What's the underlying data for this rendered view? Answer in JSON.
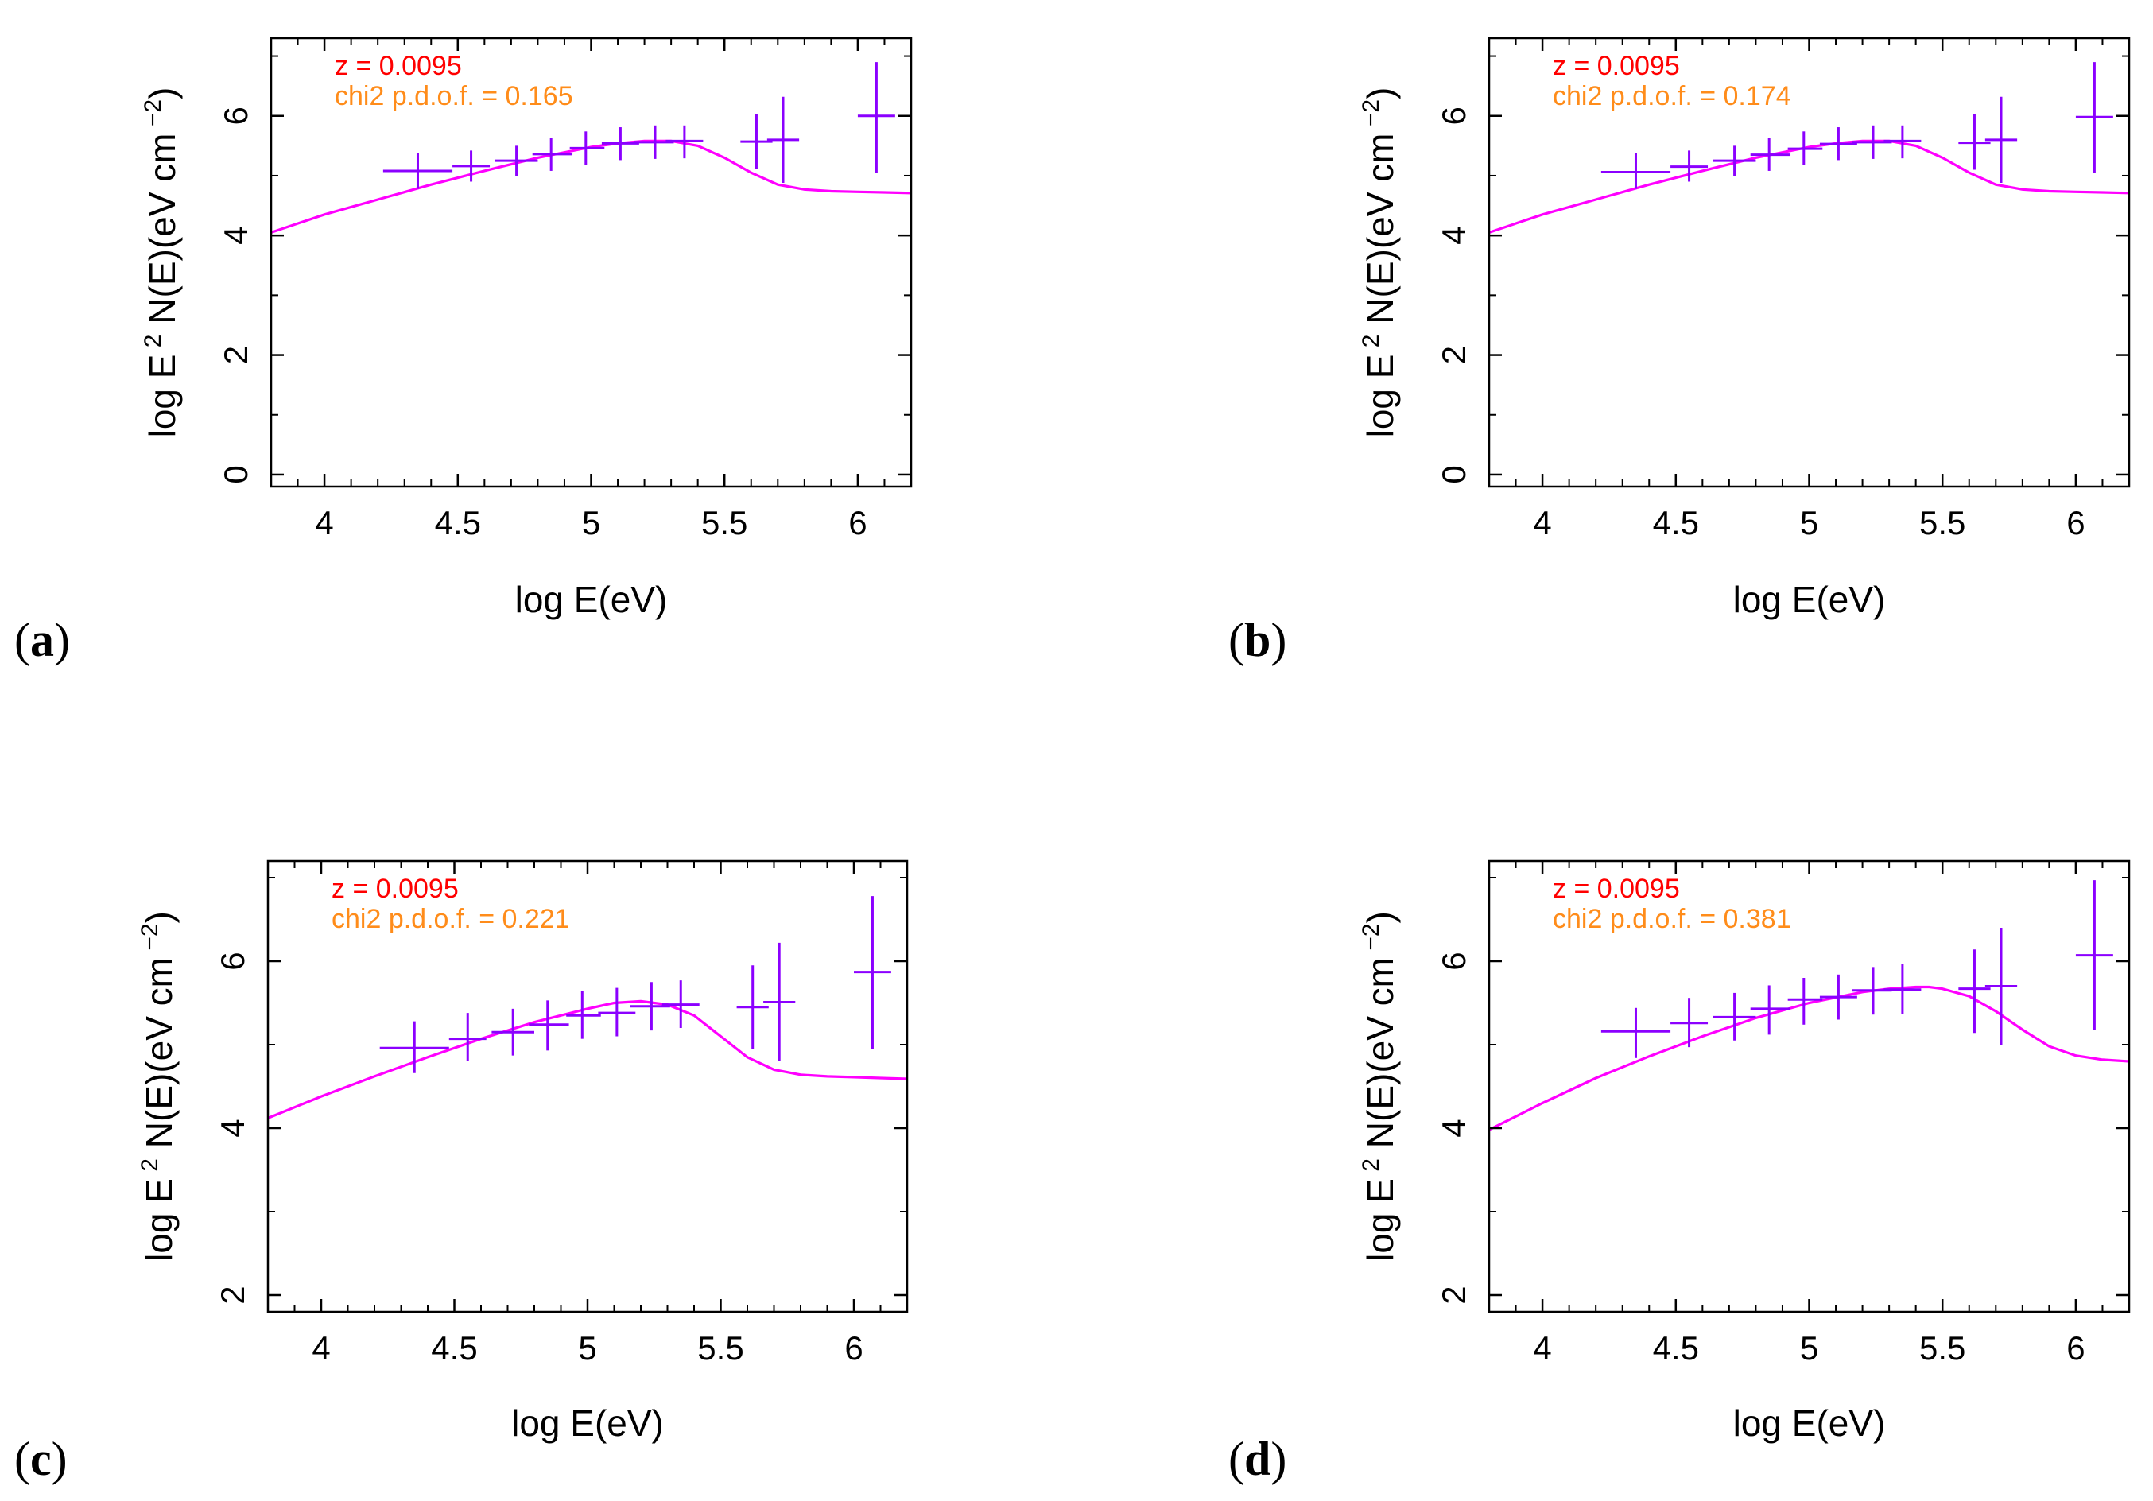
{
  "figure_title": "",
  "chart_data": [
    {
      "panel": "a",
      "panel_label": {
        "open": "(",
        "letter": "a",
        "close": ")"
      },
      "type": "scatter",
      "xlabel": "log E(eV)",
      "ylabel": {
        "pre": "log E",
        "sup1": "2",
        "mid": " N(E)(eV cm",
        "sup2": "−2",
        "post": ")"
      },
      "xlim": [
        3.8,
        6.2
      ],
      "ylim": [
        -0.2,
        7.3
      ],
      "xticks": [
        4,
        4.5,
        5,
        5.5,
        6
      ],
      "xtick_labels": [
        "4",
        "4.5",
        "5",
        "5.5",
        "6"
      ],
      "xminor": [
        3.9,
        4.1,
        4.2,
        4.3,
        4.4,
        4.6,
        4.7,
        4.8,
        4.9,
        5.1,
        5.2,
        5.3,
        5.4,
        5.6,
        5.7,
        5.8,
        5.9,
        6.1
      ],
      "yticks": [
        0,
        2,
        4,
        6
      ],
      "ytick_labels": [
        "0",
        "2",
        "4",
        "6"
      ],
      "yminor": [
        1,
        3,
        5,
        7
      ],
      "annotation_z": "z = 0.0095",
      "annotation_chi2": "chi2 p.d.o.f. = 0.165",
      "colors": {
        "model": "#ff00ff",
        "data": "#8b00ff",
        "redshift": "#ff0000",
        "chi2": "#ff8c1a"
      },
      "model_curve": {
        "x": [
          3.8,
          4.0,
          4.2,
          4.4,
          4.6,
          4.8,
          5.0,
          5.1,
          5.2,
          5.3,
          5.4,
          5.5,
          5.6,
          5.7,
          5.8,
          5.9,
          6.0,
          6.1,
          6.2
        ],
        "y": [
          4.05,
          4.35,
          4.6,
          4.85,
          5.08,
          5.3,
          5.48,
          5.54,
          5.58,
          5.58,
          5.5,
          5.3,
          5.05,
          4.85,
          4.77,
          4.74,
          4.73,
          4.72,
          4.71
        ]
      },
      "points": [
        {
          "x": 4.35,
          "xlo": 4.22,
          "xhi": 4.48,
          "y": 5.08,
          "ylo": 4.78,
          "yhi": 5.38
        },
        {
          "x": 4.55,
          "xlo": 4.48,
          "xhi": 4.62,
          "y": 5.16,
          "ylo": 4.9,
          "yhi": 5.42
        },
        {
          "x": 4.72,
          "xlo": 4.64,
          "xhi": 4.8,
          "y": 5.25,
          "ylo": 4.99,
          "yhi": 5.5
        },
        {
          "x": 4.85,
          "xlo": 4.78,
          "xhi": 4.93,
          "y": 5.36,
          "ylo": 5.08,
          "yhi": 5.63
        },
        {
          "x": 4.98,
          "xlo": 4.92,
          "xhi": 5.05,
          "y": 5.46,
          "ylo": 5.18,
          "yhi": 5.74
        },
        {
          "x": 5.11,
          "xlo": 5.04,
          "xhi": 5.18,
          "y": 5.54,
          "ylo": 5.26,
          "yhi": 5.81
        },
        {
          "x": 5.24,
          "xlo": 5.16,
          "xhi": 5.31,
          "y": 5.56,
          "ylo": 5.28,
          "yhi": 5.84
        },
        {
          "x": 5.35,
          "xlo": 5.28,
          "xhi": 5.42,
          "y": 5.58,
          "ylo": 5.29,
          "yhi": 5.84
        },
        {
          "x": 5.62,
          "xlo": 5.56,
          "xhi": 5.68,
          "y": 5.57,
          "ylo": 5.11,
          "yhi": 6.03
        },
        {
          "x": 5.72,
          "xlo": 5.66,
          "xhi": 5.78,
          "y": 5.6,
          "ylo": 4.88,
          "yhi": 6.32
        },
        {
          "x": 6.07,
          "xlo": 6.0,
          "xhi": 6.14,
          "y": 6.0,
          "ylo": 5.05,
          "yhi": 6.9
        }
      ]
    },
    {
      "panel": "b",
      "panel_label": {
        "open": "(",
        "letter": "b",
        "close": ")"
      },
      "type": "scatter",
      "xlabel": "log E(eV)",
      "ylabel": {
        "pre": "log E",
        "sup1": "2",
        "mid": " N(E)(eV cm",
        "sup2": "−2",
        "post": ")"
      },
      "xlim": [
        3.8,
        6.2
      ],
      "ylim": [
        -0.2,
        7.3
      ],
      "xticks": [
        4,
        4.5,
        5,
        5.5,
        6
      ],
      "xtick_labels": [
        "4",
        "4.5",
        "5",
        "5.5",
        "6"
      ],
      "xminor": [
        3.9,
        4.1,
        4.2,
        4.3,
        4.4,
        4.6,
        4.7,
        4.8,
        4.9,
        5.1,
        5.2,
        5.3,
        5.4,
        5.6,
        5.7,
        5.8,
        5.9,
        6.1
      ],
      "yticks": [
        0,
        2,
        4,
        6
      ],
      "ytick_labels": [
        "0",
        "2",
        "4",
        "6"
      ],
      "yminor": [
        1,
        3,
        5,
        7
      ],
      "annotation_z": "z = 0.0095",
      "annotation_chi2": "chi2 p.d.o.f. = 0.174",
      "colors": {
        "model": "#ff00ff",
        "data": "#8b00ff",
        "redshift": "#ff0000",
        "chi2": "#ff8c1a"
      },
      "model_curve": {
        "x": [
          3.8,
          4.0,
          4.2,
          4.4,
          4.6,
          4.8,
          5.0,
          5.1,
          5.2,
          5.3,
          5.4,
          5.5,
          5.6,
          5.7,
          5.8,
          5.9,
          6.0,
          6.1,
          6.2
        ],
        "y": [
          4.05,
          4.35,
          4.6,
          4.85,
          5.08,
          5.3,
          5.48,
          5.54,
          5.58,
          5.58,
          5.5,
          5.3,
          5.05,
          4.85,
          4.77,
          4.74,
          4.73,
          4.72,
          4.71
        ]
      },
      "points": [
        {
          "x": 4.35,
          "xlo": 4.22,
          "xhi": 4.48,
          "y": 5.06,
          "ylo": 4.78,
          "yhi": 5.38
        },
        {
          "x": 4.55,
          "xlo": 4.48,
          "xhi": 4.62,
          "y": 5.15,
          "ylo": 4.9,
          "yhi": 5.42
        },
        {
          "x": 4.72,
          "xlo": 4.64,
          "xhi": 4.8,
          "y": 5.25,
          "ylo": 4.99,
          "yhi": 5.5
        },
        {
          "x": 4.85,
          "xlo": 4.78,
          "xhi": 4.93,
          "y": 5.35,
          "ylo": 5.08,
          "yhi": 5.63
        },
        {
          "x": 4.98,
          "xlo": 4.92,
          "xhi": 5.05,
          "y": 5.45,
          "ylo": 5.18,
          "yhi": 5.74
        },
        {
          "x": 5.11,
          "xlo": 5.04,
          "xhi": 5.18,
          "y": 5.53,
          "ylo": 5.26,
          "yhi": 5.81
        },
        {
          "x": 5.24,
          "xlo": 5.16,
          "xhi": 5.31,
          "y": 5.56,
          "ylo": 5.28,
          "yhi": 5.84
        },
        {
          "x": 5.35,
          "xlo": 5.28,
          "xhi": 5.42,
          "y": 5.58,
          "ylo": 5.29,
          "yhi": 5.84
        },
        {
          "x": 5.62,
          "xlo": 5.56,
          "xhi": 5.68,
          "y": 5.55,
          "ylo": 5.1,
          "yhi": 6.03
        },
        {
          "x": 5.72,
          "xlo": 5.66,
          "xhi": 5.78,
          "y": 5.6,
          "ylo": 4.88,
          "yhi": 6.32
        },
        {
          "x": 6.07,
          "xlo": 6.0,
          "xhi": 6.14,
          "y": 5.98,
          "ylo": 5.05,
          "yhi": 6.9
        }
      ]
    },
    {
      "panel": "c",
      "panel_label": {
        "open": "(",
        "letter": "c",
        "close": ")"
      },
      "type": "scatter",
      "xlabel": "log E(eV)",
      "ylabel": {
        "pre": "log E",
        "sup1": "2",
        "mid": " N(E)(eV cm",
        "sup2": "−2",
        "post": ")"
      },
      "xlim": [
        3.8,
        6.2
      ],
      "ylim": [
        1.8,
        7.2
      ],
      "xticks": [
        4,
        4.5,
        5,
        5.5,
        6
      ],
      "xtick_labels": [
        "4",
        "4.5",
        "5",
        "5.5",
        "6"
      ],
      "xminor": [
        3.9,
        4.1,
        4.2,
        4.3,
        4.4,
        4.6,
        4.7,
        4.8,
        4.9,
        5.1,
        5.2,
        5.3,
        5.4,
        5.6,
        5.7,
        5.8,
        5.9,
        6.1
      ],
      "yticks": [
        2,
        4,
        6
      ],
      "ytick_labels": [
        "2",
        "4",
        "6"
      ],
      "yminor": [
        3,
        5,
        7
      ],
      "annotation_z": "z = 0.0095",
      "annotation_chi2": "chi2 p.d.o.f. = 0.221",
      "colors": {
        "model": "#ff00ff",
        "data": "#8b00ff",
        "redshift": "#ff0000",
        "chi2": "#ff8c1a"
      },
      "model_curve": {
        "x": [
          3.8,
          4.0,
          4.2,
          4.4,
          4.6,
          4.8,
          5.0,
          5.1,
          5.2,
          5.3,
          5.4,
          5.5,
          5.6,
          5.7,
          5.8,
          5.9,
          6.0,
          6.1,
          6.2
        ],
        "y": [
          4.12,
          4.38,
          4.62,
          4.85,
          5.07,
          5.27,
          5.43,
          5.5,
          5.52,
          5.48,
          5.35,
          5.1,
          4.85,
          4.7,
          4.64,
          4.62,
          4.61,
          4.6,
          4.59
        ]
      },
      "points": [
        {
          "x": 4.35,
          "xlo": 4.22,
          "xhi": 4.48,
          "y": 4.96,
          "ylo": 4.66,
          "yhi": 5.28
        },
        {
          "x": 4.55,
          "xlo": 4.48,
          "xhi": 4.62,
          "y": 5.07,
          "ylo": 4.8,
          "yhi": 5.38
        },
        {
          "x": 4.72,
          "xlo": 4.64,
          "xhi": 4.8,
          "y": 5.15,
          "ylo": 4.87,
          "yhi": 5.43
        },
        {
          "x": 4.85,
          "xlo": 4.78,
          "xhi": 4.93,
          "y": 5.24,
          "ylo": 4.93,
          "yhi": 5.53
        },
        {
          "x": 4.98,
          "xlo": 4.92,
          "xhi": 5.05,
          "y": 5.35,
          "ylo": 5.07,
          "yhi": 5.64
        },
        {
          "x": 5.11,
          "xlo": 5.04,
          "xhi": 5.18,
          "y": 5.38,
          "ylo": 5.1,
          "yhi": 5.68
        },
        {
          "x": 5.24,
          "xlo": 5.16,
          "xhi": 5.31,
          "y": 5.46,
          "ylo": 5.17,
          "yhi": 5.75
        },
        {
          "x": 5.35,
          "xlo": 5.28,
          "xhi": 5.42,
          "y": 5.48,
          "ylo": 5.2,
          "yhi": 5.77
        },
        {
          "x": 5.62,
          "xlo": 5.56,
          "xhi": 5.68,
          "y": 5.45,
          "ylo": 4.95,
          "yhi": 5.95
        },
        {
          "x": 5.72,
          "xlo": 5.66,
          "xhi": 5.78,
          "y": 5.51,
          "ylo": 4.8,
          "yhi": 6.22
        },
        {
          "x": 6.07,
          "xlo": 6.0,
          "xhi": 6.14,
          "y": 5.87,
          "ylo": 4.95,
          "yhi": 6.78
        }
      ]
    },
    {
      "panel": "d",
      "panel_label": {
        "open": "(",
        "letter": "d",
        "close": ")"
      },
      "type": "scatter",
      "xlabel": "log E(eV)",
      "ylabel": {
        "pre": "log E",
        "sup1": "2",
        "mid": " N(E)(eV cm",
        "sup2": "−2",
        "post": ")"
      },
      "xlim": [
        3.8,
        6.2
      ],
      "ylim": [
        1.8,
        7.2
      ],
      "xticks": [
        4,
        4.5,
        5,
        5.5,
        6
      ],
      "xtick_labels": [
        "4",
        "4.5",
        "5",
        "5.5",
        "6"
      ],
      "xminor": [
        3.9,
        4.1,
        4.2,
        4.3,
        4.4,
        4.6,
        4.7,
        4.8,
        4.9,
        5.1,
        5.2,
        5.3,
        5.4,
        5.6,
        5.7,
        5.8,
        5.9,
        6.1
      ],
      "yticks": [
        2,
        4,
        6
      ],
      "ytick_labels": [
        "2",
        "4",
        "6"
      ],
      "yminor": [
        3,
        5,
        7
      ],
      "annotation_z": "z = 0.0095",
      "annotation_chi2": "chi2 p.d.o.f. = 0.381",
      "colors": {
        "model": "#ff00ff",
        "data": "#8b00ff",
        "redshift": "#ff0000",
        "chi2": "#ff8c1a"
      },
      "model_curve": {
        "x": [
          3.8,
          4.0,
          4.2,
          4.4,
          4.6,
          4.8,
          5.0,
          5.2,
          5.3,
          5.4,
          5.45,
          5.5,
          5.6,
          5.7,
          5.8,
          5.9,
          6.0,
          6.1,
          6.2
        ],
        "y": [
          3.98,
          4.3,
          4.6,
          4.86,
          5.1,
          5.32,
          5.5,
          5.63,
          5.67,
          5.69,
          5.69,
          5.67,
          5.58,
          5.4,
          5.18,
          4.98,
          4.87,
          4.82,
          4.8
        ]
      },
      "points": [
        {
          "x": 4.35,
          "xlo": 4.22,
          "xhi": 4.48,
          "y": 5.16,
          "ylo": 4.84,
          "yhi": 5.44
        },
        {
          "x": 4.55,
          "xlo": 4.48,
          "xhi": 4.62,
          "y": 5.26,
          "ylo": 4.97,
          "yhi": 5.56
        },
        {
          "x": 4.72,
          "xlo": 4.64,
          "xhi": 4.8,
          "y": 5.33,
          "ylo": 5.05,
          "yhi": 5.62
        },
        {
          "x": 4.85,
          "xlo": 4.78,
          "xhi": 4.93,
          "y": 5.43,
          "ylo": 5.12,
          "yhi": 5.71
        },
        {
          "x": 4.98,
          "xlo": 4.92,
          "xhi": 5.05,
          "y": 5.54,
          "ylo": 5.24,
          "yhi": 5.8
        },
        {
          "x": 5.11,
          "xlo": 5.04,
          "xhi": 5.18,
          "y": 5.57,
          "ylo": 5.3,
          "yhi": 5.84
        },
        {
          "x": 5.24,
          "xlo": 5.16,
          "xhi": 5.31,
          "y": 5.65,
          "ylo": 5.36,
          "yhi": 5.93
        },
        {
          "x": 5.35,
          "xlo": 5.28,
          "xhi": 5.42,
          "y": 5.66,
          "ylo": 5.37,
          "yhi": 5.97
        },
        {
          "x": 5.62,
          "xlo": 5.56,
          "xhi": 5.68,
          "y": 5.67,
          "ylo": 5.14,
          "yhi": 6.14
        },
        {
          "x": 5.72,
          "xlo": 5.66,
          "xhi": 5.78,
          "y": 5.7,
          "ylo": 5.0,
          "yhi": 6.4
        },
        {
          "x": 6.07,
          "xlo": 6.0,
          "xhi": 6.14,
          "y": 6.07,
          "ylo": 5.18,
          "yhi": 6.97
        }
      ]
    }
  ]
}
